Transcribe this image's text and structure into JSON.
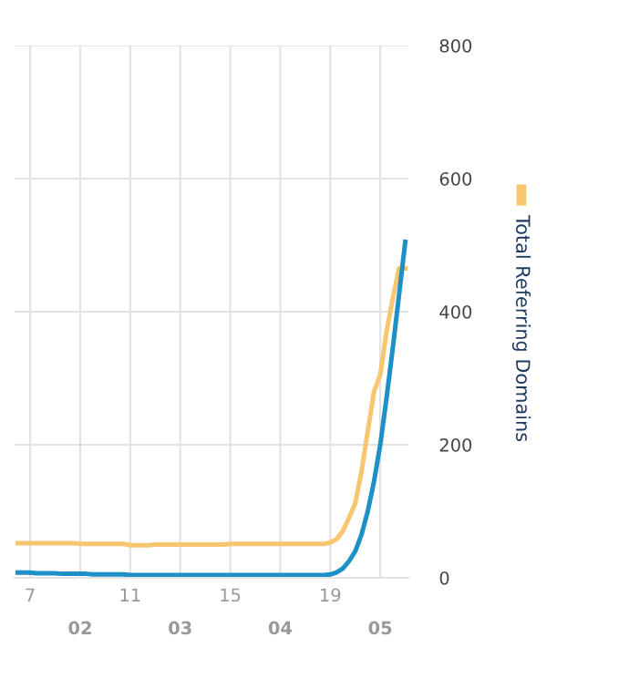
{
  "chart_data": {
    "type": "line",
    "ylim": [
      0,
      800
    ],
    "yticks": [
      0,
      200,
      400,
      600,
      800
    ],
    "categories": [
      null,
      null,
      "7",
      null,
      null,
      null,
      null,
      null,
      null,
      null,
      "02",
      null,
      null,
      null,
      null,
      null,
      null,
      null,
      "11",
      null,
      null,
      null,
      null,
      null,
      null,
      null,
      "03",
      null,
      null,
      null,
      null,
      null,
      null,
      null,
      "15",
      null,
      null,
      null,
      null,
      null,
      null,
      null,
      "04",
      null,
      null,
      null,
      null,
      null,
      null,
      null,
      "19",
      null,
      null,
      null,
      null,
      null,
      null,
      null,
      "05",
      null,
      null,
      null,
      null
    ],
    "grid": true,
    "legend": "right",
    "marker": "none",
    "line_style": "solid",
    "series": [
      {
        "name": "Total Referring Domains",
        "color": "#f8c66e",
        "values": [
          52,
          52,
          52,
          52,
          52,
          52,
          52,
          52,
          52,
          52,
          51,
          51,
          51,
          51,
          51,
          51,
          51,
          51,
          49,
          49,
          49,
          49,
          50,
          50,
          50,
          50,
          50,
          50,
          50,
          50,
          50,
          50,
          50,
          50,
          51,
          51,
          51,
          51,
          51,
          51,
          51,
          51,
          51,
          51,
          51,
          51,
          51,
          51,
          51,
          51,
          53,
          58,
          70,
          90,
          112,
          160,
          220,
          280,
          305,
          370,
          420,
          465,
          465
        ]
      },
      {
        "color": "#1e90c8",
        "values": [
          8,
          8,
          8,
          7,
          7,
          7,
          7,
          6,
          6,
          6,
          6,
          6,
          5,
          5,
          5,
          5,
          5,
          5,
          4,
          4,
          4,
          4,
          4,
          4,
          4,
          4,
          4,
          4,
          4,
          4,
          4,
          4,
          4,
          4,
          4,
          4,
          4,
          4,
          4,
          4,
          4,
          4,
          4,
          4,
          4,
          4,
          4,
          4,
          4,
          4,
          5,
          8,
          14,
          25,
          40,
          65,
          100,
          145,
          200,
          270,
          345,
          425,
          505
        ]
      }
    ]
  }
}
